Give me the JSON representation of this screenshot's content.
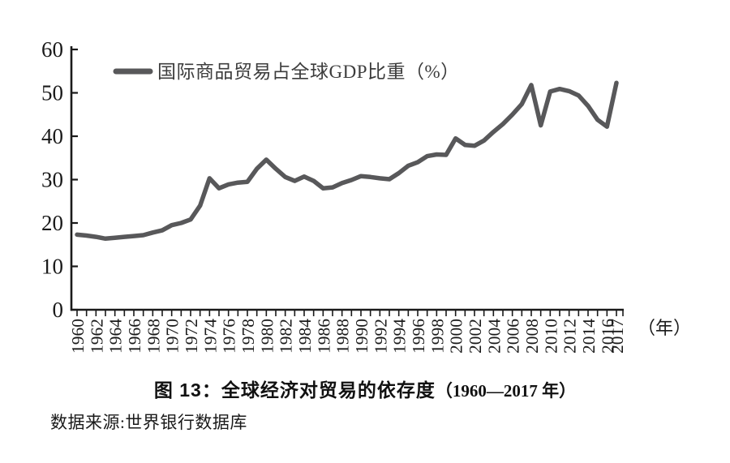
{
  "chart_data": {
    "type": "line",
    "title": "图 13：全球经济对贸易的依存度（1960—2017 年）",
    "legend": [
      "国际商品贸易占全球GDP比重（%）"
    ],
    "legend_position": "top-left-inside",
    "grid": false,
    "xlabel": "（年）",
    "ylabel": "",
    "ylim": [
      0,
      60
    ],
    "yticks": [
      0,
      10,
      20,
      30,
      40,
      50,
      60
    ],
    "xtick_labels": [
      "1960",
      "1962",
      "1964",
      "1966",
      "1968",
      "1970",
      "1972",
      "1974",
      "1976",
      "1978",
      "1980",
      "1982",
      "1984",
      "1986",
      "1988",
      "1990",
      "1992",
      "1994",
      "1996",
      "1998",
      "2000",
      "2002",
      "2004",
      "2006",
      "2008",
      "2010",
      "2012",
      "2014",
      "2016",
      "2017"
    ],
    "x": [
      1960,
      1961,
      1962,
      1963,
      1964,
      1965,
      1966,
      1967,
      1968,
      1969,
      1970,
      1971,
      1972,
      1973,
      1974,
      1975,
      1976,
      1977,
      1978,
      1979,
      1980,
      1981,
      1982,
      1983,
      1984,
      1985,
      1986,
      1987,
      1988,
      1989,
      1990,
      1991,
      1992,
      1993,
      1994,
      1995,
      1996,
      1997,
      1998,
      1999,
      2000,
      2001,
      2002,
      2003,
      2004,
      2005,
      2006,
      2007,
      2008,
      2009,
      2010,
      2011,
      2012,
      2013,
      2014,
      2015,
      2016,
      2017
    ],
    "series": [
      {
        "name": "国际商品贸易占全球GDP比重（%）",
        "values": [
          17.3,
          17.1,
          16.8,
          16.4,
          16.6,
          16.8,
          17.0,
          17.2,
          17.8,
          18.3,
          19.5,
          20.0,
          20.8,
          24.0,
          30.3,
          28.0,
          28.9,
          29.3,
          29.5,
          32.5,
          34.6,
          32.5,
          30.6,
          29.7,
          30.7,
          29.7,
          28.0,
          28.2,
          29.2,
          29.9,
          30.8,
          30.6,
          30.3,
          30.1,
          31.5,
          33.2,
          34.0,
          35.4,
          35.8,
          35.7,
          39.5,
          38.0,
          37.8,
          39.0,
          41.0,
          42.8,
          45.0,
          47.4,
          51.8,
          42.5,
          50.3,
          50.9,
          50.4,
          49.4,
          47.0,
          43.8,
          42.2,
          52.3
        ]
      }
    ],
    "line_color": "#58585a",
    "axis_color": "#1a1a1a"
  },
  "caption": {
    "bold": "图 13：全球经济对贸易的依存度",
    "range": "（1960—2017 年）"
  },
  "source": "数据来源:世界银行数据库"
}
